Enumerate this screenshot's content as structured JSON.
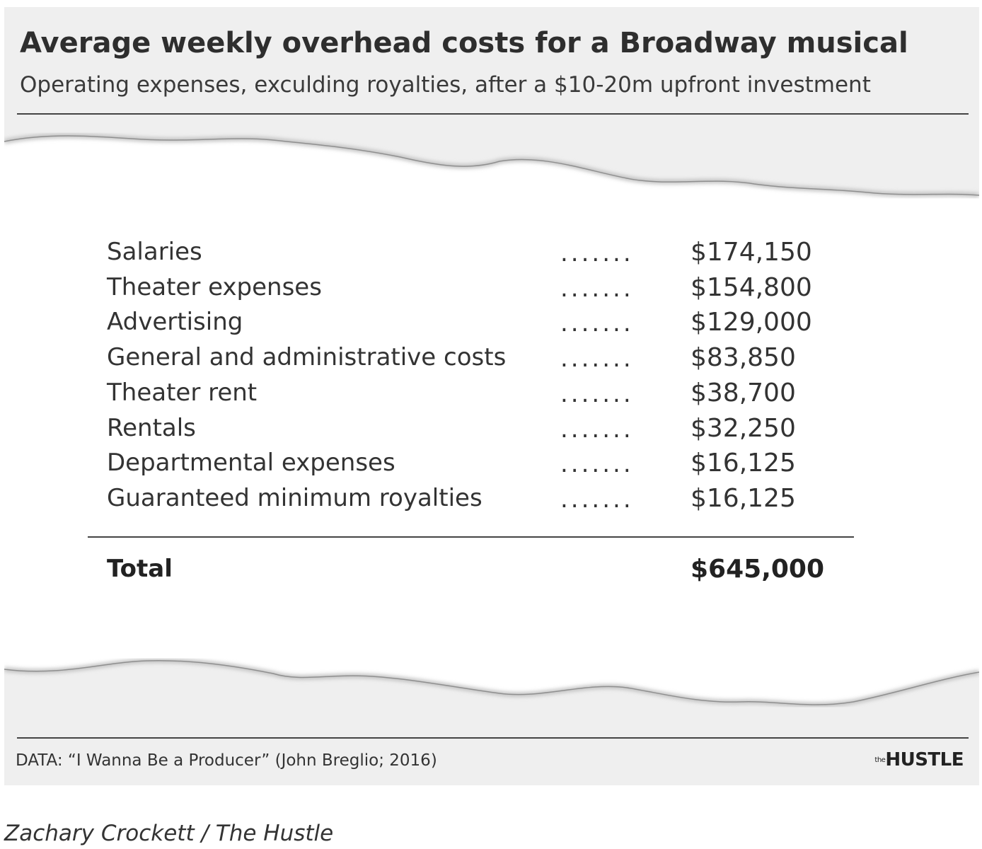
{
  "chart_data": {
    "type": "table",
    "title": "Average weekly overhead costs for a Broadway musical",
    "subtitle": "Operating expenses, exculding royalties, after a $10-20m upfront investment",
    "dot_leader": ".......",
    "rows": [
      {
        "label": "Salaries",
        "value": "$174,150"
      },
      {
        "label": "Theater expenses",
        "value": "$154,800"
      },
      {
        "label": "Advertising",
        "value": "$129,000"
      },
      {
        "label": "General and administrative costs",
        "value": "$83,850"
      },
      {
        "label": "Theater rent",
        "value": "$38,700"
      },
      {
        "label": "Rentals",
        "value": "$32,250"
      },
      {
        "label": "Departmental expenses",
        "value": "$16,125"
      },
      {
        "label": "Guaranteed minimum royalties",
        "value": "$16,125"
      }
    ],
    "total": {
      "label": "Total",
      "value": "$645,000"
    },
    "source": "DATA: “I Wanna Be a Producer” (John Breglio; 2016)",
    "brand": {
      "prefix": "the",
      "name": "HUSTLE"
    }
  },
  "credit": "Zachary Crockett / The Hustle"
}
